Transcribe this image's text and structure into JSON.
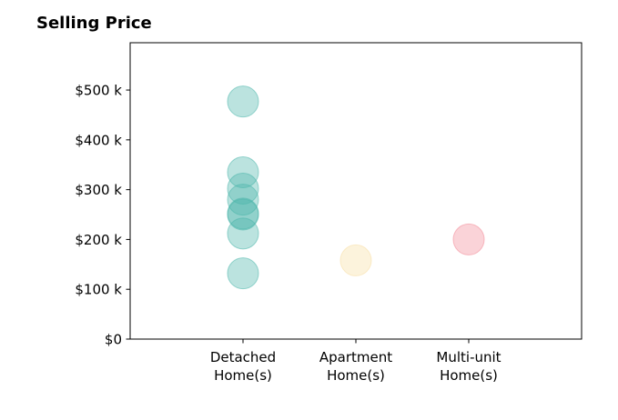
{
  "chart_data": {
    "type": "scatter",
    "title": "Selling Price",
    "xlabel": "",
    "ylabel": "",
    "categories": [
      [
        "Detached",
        "Home(s)"
      ],
      [
        "Apartment",
        "Home(s)"
      ],
      [
        "Multi-unit",
        "Home(s)"
      ]
    ],
    "xlim": [
      -1,
      3
    ],
    "ylim": [
      0,
      595000
    ],
    "yticks": [
      0,
      100000,
      200000,
      300000,
      400000,
      500000
    ],
    "ytick_labels": [
      "$0",
      "$100 k",
      "$200 k",
      "$300 k",
      "$400 k",
      "$500 k"
    ],
    "grid": false,
    "legend": "none",
    "series": [
      {
        "category": 0,
        "color": "#4db6ac",
        "values": [
          477000,
          335000,
          302000,
          280000,
          252000,
          250000,
          212000,
          132000
        ]
      },
      {
        "category": 1,
        "color": "#f8dfa4",
        "values": [
          158000
        ]
      },
      {
        "category": 2,
        "color": "#f28b98",
        "values": [
          200000
        ]
      }
    ]
  }
}
